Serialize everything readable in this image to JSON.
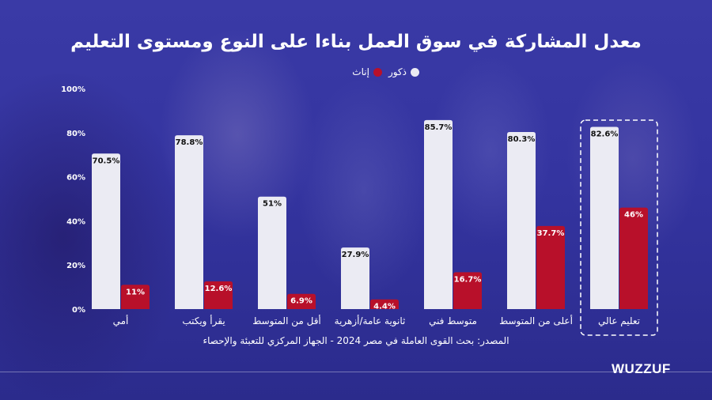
{
  "chart_data": {
    "type": "bar",
    "title": "معدل المشاركة في سوق العمل بناءا على النوع ومستوى التعليم",
    "categories": [
      "أمي",
      "يقرأ ويكتب",
      "أقل من المتوسط",
      "ثانوية عامة/أزهرية",
      "متوسط فني",
      "أعلى من المتوسط",
      "تعليم عالي"
    ],
    "series": [
      {
        "name": "ذكور",
        "color": "#ebebf3",
        "values": [
          70.5,
          78.8,
          51,
          27.9,
          85.7,
          80.3,
          82.6
        ],
        "labels": [
          "70.5%",
          "78.8%",
          "51%",
          "27.9%",
          "85.7%",
          "80.3%",
          "82.6%"
        ]
      },
      {
        "name": "إناث",
        "color": "#b8102a",
        "values": [
          11,
          12.6,
          6.9,
          4.4,
          16.7,
          37.7,
          46
        ],
        "labels": [
          "11%",
          "12.6%",
          "6.9%",
          "4.4%",
          "16.7%",
          "37.7%",
          "46%"
        ]
      }
    ],
    "ylim": [
      0,
      100
    ],
    "yticks": [
      "0%",
      "20%",
      "40%",
      "60%",
      "80%",
      "100%"
    ],
    "highlighted_category": "تعليم عالي",
    "legend_position": "top-center",
    "grid": false
  },
  "source": "المصدر: بحث القوى العاملة في مصر 2024 - الجهاز المركزي للتعبئة والإحصاء",
  "brand": "WUZZUF",
  "colors": {
    "background": "#3434a0",
    "male": "#ebebf3",
    "female": "#b8102a"
  }
}
